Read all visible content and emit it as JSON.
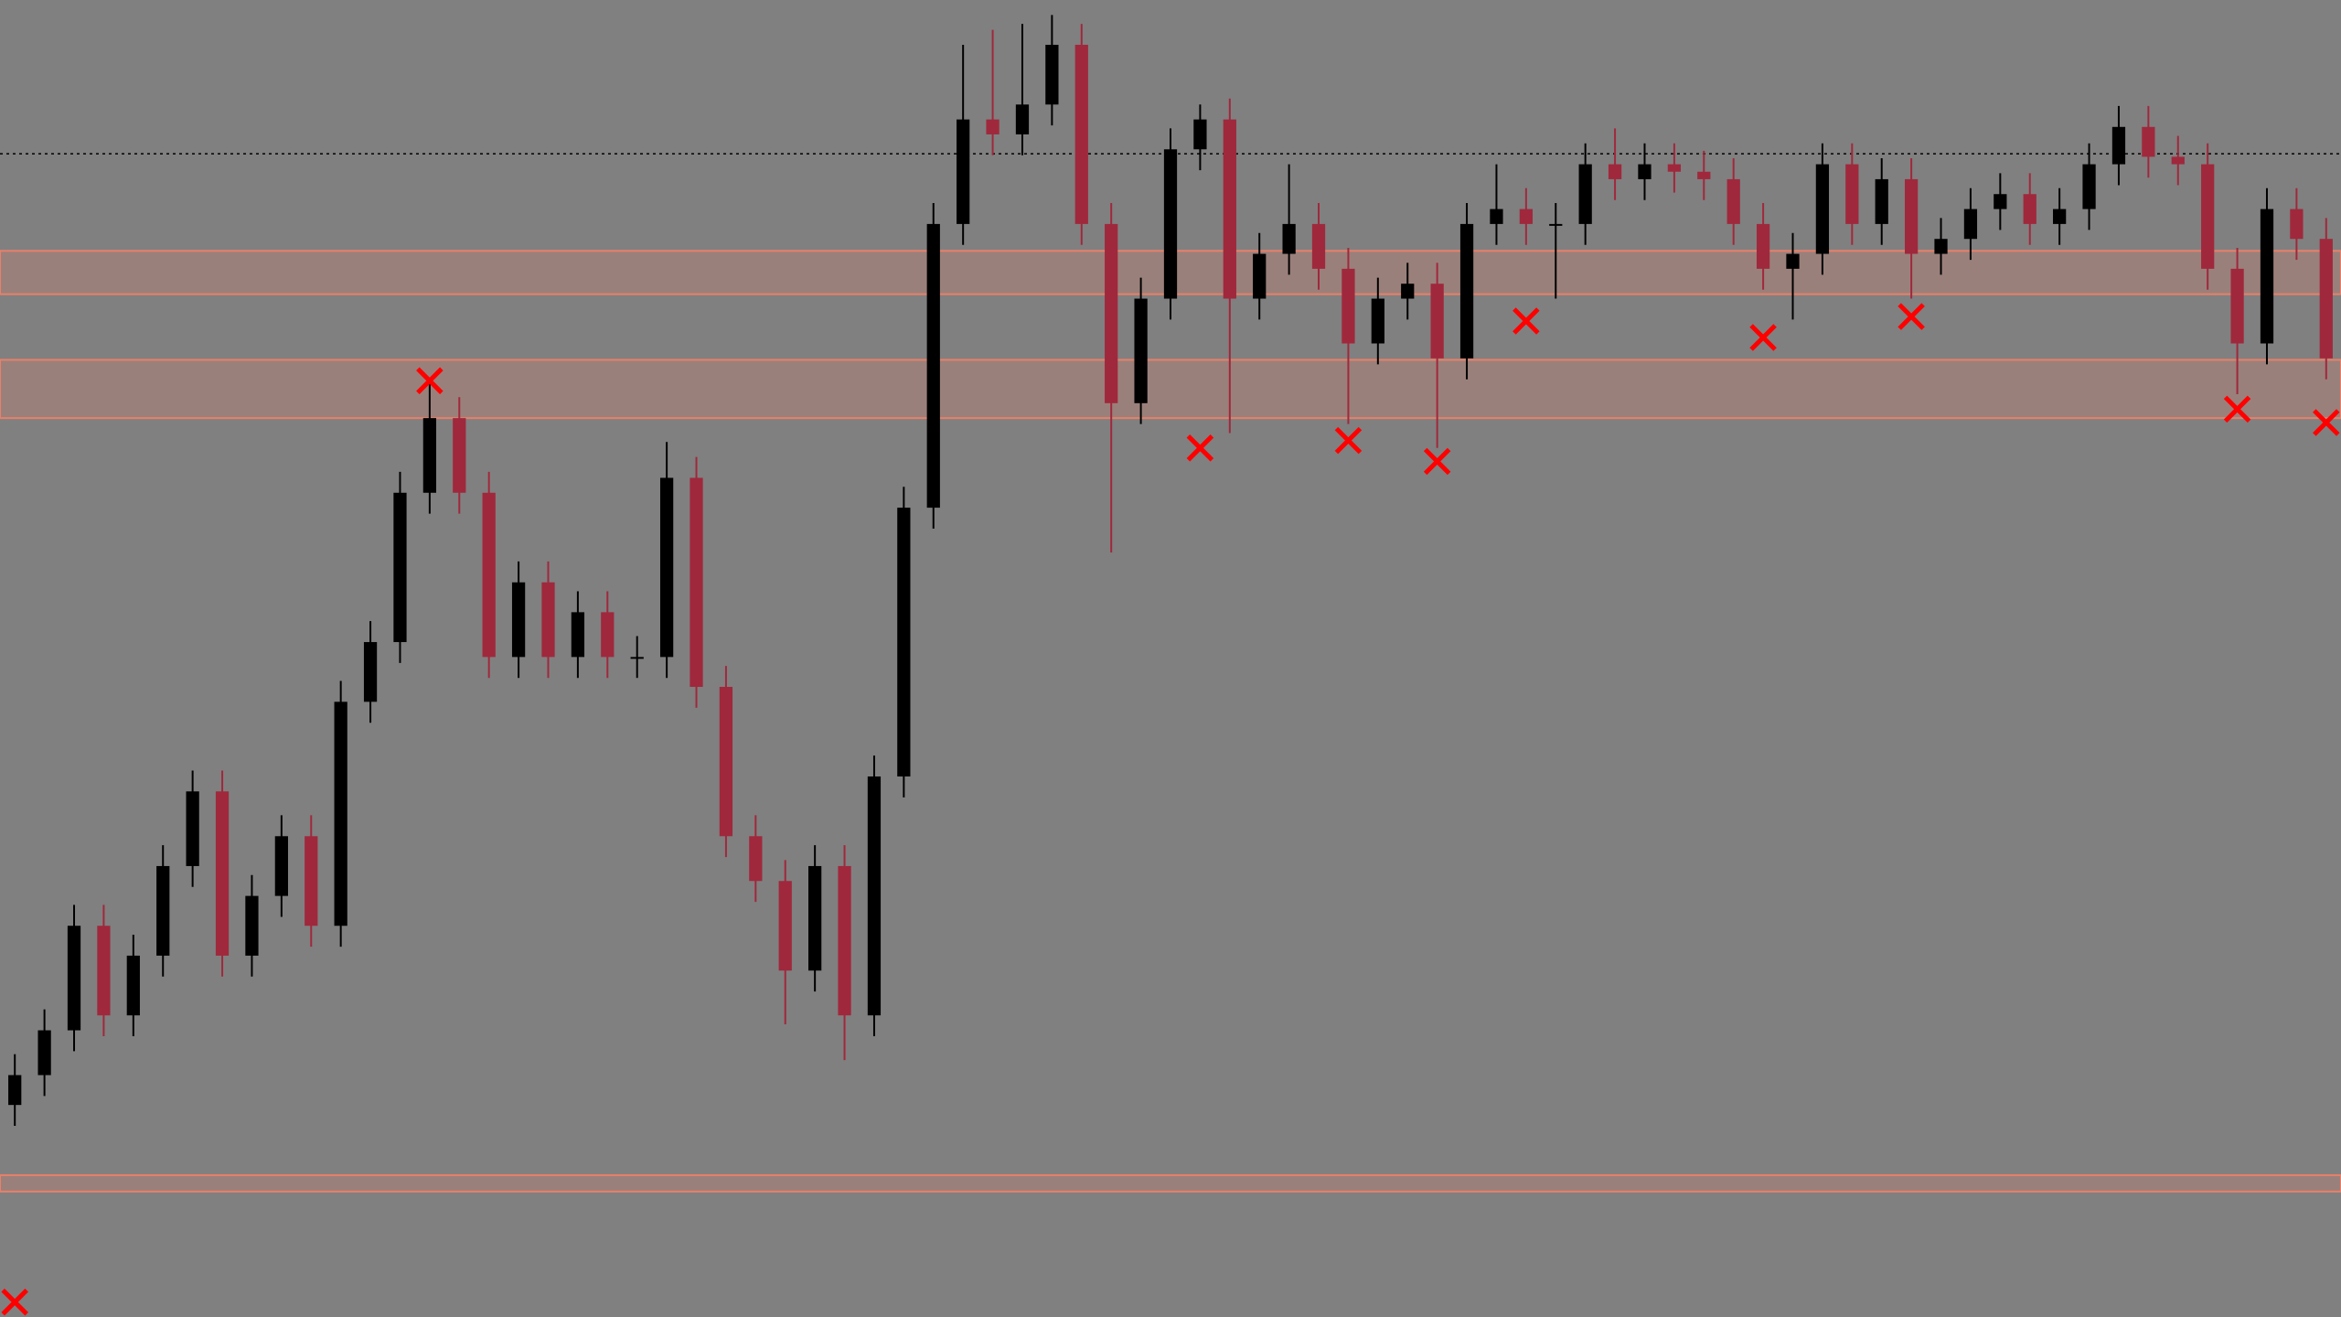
{
  "chart_data": {
    "type": "candlestick",
    "background": "#808080",
    "up_color": "#000000",
    "down_color": "#a0283c",
    "zone_color": "#e8806a",
    "marker_color": "#ff0000",
    "level_color": "#000000",
    "ylim": [
      0,
      882
    ],
    "open": [
      142,
      162,
      192,
      262,
      202,
      242,
      302,
      352,
      242,
      282,
      322,
      262,
      412,
      452,
      552,
      602,
      552,
      442,
      492,
      442,
      472,
      442,
      442,
      562,
      422,
      322,
      292,
      232,
      302,
      202,
      362,
      542,
      732,
      802,
      792,
      812,
      852,
      732,
      612,
      682,
      782,
      802,
      682,
      712,
      732,
      702,
      652,
      682,
      692,
      642,
      732,
      742,
      732,
      732,
      772,
      762,
      772,
      767,
      762,
      732,
      702,
      712,
      772,
      732,
      762,
      712,
      722,
      742,
      752,
      732,
      742,
      772,
      797,
      777,
      772,
      702,
      652,
      742,
      722
    ],
    "high": [
      176,
      206,
      276,
      276,
      256,
      316,
      366,
      366,
      296,
      336,
      336,
      426,
      466,
      566,
      627,
      616,
      566,
      506,
      506,
      486,
      486,
      456,
      586,
      576,
      436,
      336,
      306,
      316,
      316,
      376,
      556,
      746,
      852,
      862,
      866,
      872,
      866,
      746,
      696,
      796,
      812,
      816,
      726,
      772,
      746,
      716,
      696,
      706,
      706,
      746,
      772,
      756,
      746,
      786,
      796,
      786,
      786,
      781,
      776,
      746,
      726,
      786,
      786,
      776,
      776,
      736,
      756,
      766,
      766,
      756,
      786,
      811,
      811,
      791,
      786,
      716,
      756,
      756,
      736
    ],
    "low": [
      128,
      148,
      178,
      188,
      188,
      228,
      288,
      228,
      228,
      268,
      248,
      248,
      398,
      438,
      538,
      538,
      428,
      428,
      428,
      428,
      428,
      428,
      428,
      408,
      308,
      278,
      196,
      218,
      172,
      188,
      348,
      528,
      718,
      778,
      778,
      798,
      718,
      512,
      598,
      668,
      768,
      592,
      668,
      698,
      688,
      598,
      638,
      668,
      582,
      628,
      718,
      718,
      682,
      718,
      748,
      748,
      753,
      748,
      718,
      688,
      668,
      698,
      718,
      718,
      682,
      698,
      708,
      728,
      718,
      718,
      728,
      758,
      763,
      758,
      688,
      618,
      638,
      708,
      628
    ],
    "close": [
      162,
      192,
      262,
      202,
      242,
      302,
      352,
      242,
      282,
      322,
      262,
      412,
      452,
      552,
      602,
      552,
      442,
      492,
      442,
      472,
      442,
      442,
      562,
      422,
      322,
      292,
      232,
      302,
      202,
      362,
      542,
      732,
      802,
      792,
      812,
      852,
      732,
      612,
      682,
      782,
      802,
      682,
      712,
      732,
      702,
      652,
      682,
      692,
      642,
      732,
      742,
      732,
      732,
      772,
      762,
      772,
      767,
      762,
      732,
      702,
      712,
      772,
      732,
      762,
      712,
      722,
      742,
      752,
      732,
      742,
      772,
      797,
      777,
      772,
      702,
      652,
      742,
      722,
      642
    ],
    "zones": [
      [
        685,
        714
      ],
      [
        602,
        641
      ],
      [
        84,
        95
      ]
    ],
    "level": 779,
    "markers": {
      "x": [
        0,
        14,
        40,
        45,
        48,
        51,
        59,
        64,
        75,
        78
      ],
      "y": [
        10,
        627,
        582,
        587,
        573,
        667,
        656,
        670,
        608,
        599
      ]
    }
  }
}
